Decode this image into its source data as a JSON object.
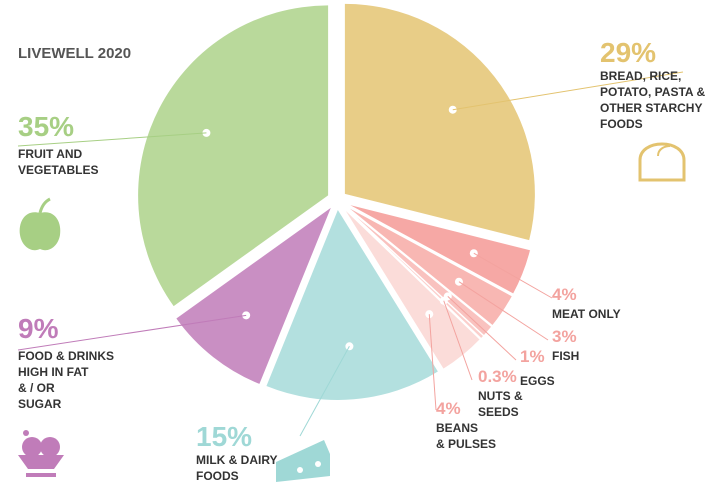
{
  "chart_data": {
    "type": "pie",
    "title": "LIVEWELL 2020",
    "slices": [
      {
        "value": 29,
        "pct_label": "29%",
        "label_lines": [
          "BREAD, RICE,",
          "POTATO, PASTA &",
          "OTHER STARCHY",
          "FOODS"
        ],
        "color": "#e8cd87",
        "pct_color": "#e3c36f",
        "icon": "bread-icon"
      },
      {
        "value": 4,
        "pct_label": "4%",
        "label_lines": [
          "MEAT ONLY"
        ],
        "color": "#f6a8a5",
        "pct_color": "#f3a39f",
        "icon": ""
      },
      {
        "value": 3,
        "pct_label": "3%",
        "label_lines": [
          "FISH"
        ],
        "color": "#f8b7b3",
        "pct_color": "#f3a39f",
        "icon": ""
      },
      {
        "value": 1,
        "pct_label": "1%",
        "label_lines": [
          "EGGS"
        ],
        "color": "#f9c2bf",
        "pct_color": "#f3a39f",
        "icon": ""
      },
      {
        "value": 0.3,
        "pct_label": "0.3%",
        "label_lines": [
          "NUTS &",
          "SEEDS"
        ],
        "color": "#fbcfcc",
        "pct_color": "#f3a39f",
        "icon": ""
      },
      {
        "value": 4,
        "pct_label": "4%",
        "label_lines": [
          "BEANS",
          "& PULSES"
        ],
        "color": "#fbdcd9",
        "pct_color": "#f3a39f",
        "icon": ""
      },
      {
        "value": 15,
        "pct_label": "15%",
        "label_lines": [
          "MILK & DAIRY",
          "FOODS"
        ],
        "color": "#b3e0df",
        "pct_color": "#9fd8d6",
        "icon": "cheese-icon"
      },
      {
        "value": 9,
        "pct_label": "9%",
        "label_lines": [
          "FOOD & DRINKS",
          "HIGH IN FAT",
          "& / OR",
          "SUGAR"
        ],
        "color": "#c98fc3",
        "pct_color": "#c07cb9",
        "icon": "ice-cream-icon"
      },
      {
        "value": 35,
        "pct_label": "35%",
        "label_lines": [
          "FRUIT AND",
          "VEGETABLES"
        ],
        "color": "#b9d99b",
        "pct_color": "#a7cf84",
        "icon": "apple-icon"
      }
    ]
  }
}
